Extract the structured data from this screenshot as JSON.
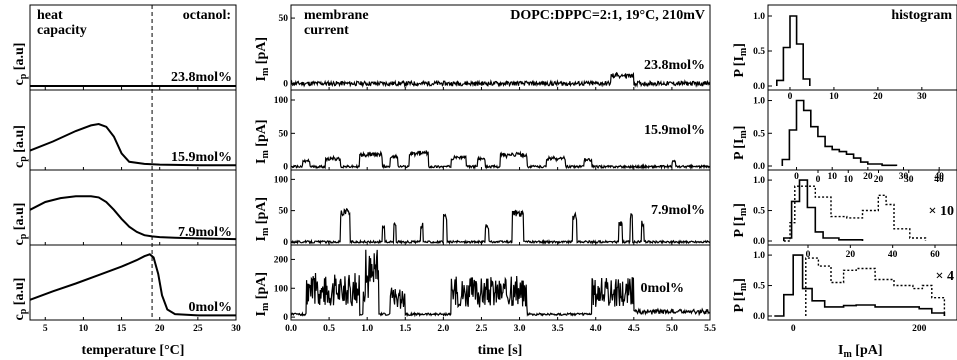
{
  "figure": {
    "left": {
      "header_left": [
        "heat",
        "capacity"
      ],
      "header_right": "octanol:",
      "y_label_main": "c",
      "y_label_sub": "p",
      "y_label_unit": " [a.u]",
      "x_label": "temperature [°C]",
      "x_ticks": [
        "5",
        "10",
        "15",
        "20",
        "25",
        "30"
      ],
      "conc_labels": [
        "23.8mol%",
        "15.9mol%",
        "7.9mol%",
        "0mol%"
      ]
    },
    "middle": {
      "header_left": [
        "membrane",
        "current"
      ],
      "header_right": "DOPC:DPPC=2:1, 19°C, 210mV",
      "y_label_main": "I",
      "y_label_sub": "m",
      "y_label_unit": " [pA]",
      "x_label": "time [s]",
      "x_ticks": [
        "0.0",
        "0.5",
        "1.0",
        "1.5",
        "2.0",
        "2.5",
        "3.0",
        "3.5",
        "4.0",
        "4.5",
        "5.0",
        "5.5"
      ],
      "conc_labels": [
        "23.8mol%",
        "15.9mol%",
        "7.9mol%",
        "0mol%"
      ],
      "y_ticks": [
        [
          "0",
          "50"
        ],
        [
          "0",
          "50",
          "100"
        ],
        [
          "0",
          "50",
          "100"
        ],
        [
          "0",
          "100",
          "200"
        ]
      ]
    },
    "right": {
      "header": "histogram",
      "y_label_main": "P [I",
      "y_label_sub": "m",
      "y_label_end": "]",
      "x_label_main": "I",
      "x_label_sub": "m",
      "x_label_unit": " [pA]",
      "y_ticks": [
        "0.0",
        "0.5",
        "1.0"
      ],
      "x_ticks": [
        "0",
        "200"
      ],
      "top_ticks": [
        [
          "0",
          "10",
          "20",
          "30"
        ],
        [
          "0",
          "10",
          "20",
          "30",
          "40"
        ],
        [
          "0",
          "20",
          "40",
          "60"
        ]
      ],
      "scale_labels": [
        "× 10",
        "× 4"
      ]
    }
  },
  "chart_data": [
    {
      "type": "line",
      "title": "heat capacity",
      "xlabel": "temperature [°C]",
      "ylabel": "cp [a.u]",
      "xlim": [
        3,
        30
      ],
      "marker_line_x": 19,
      "series": [
        {
          "name": "23.8mol%",
          "x": [
            3,
            30
          ],
          "y": [
            0,
            0
          ]
        },
        {
          "name": "15.9mol%",
          "x": [
            3,
            6,
            9,
            11,
            12,
            13,
            14,
            15,
            16,
            18,
            20,
            25,
            30
          ],
          "y": [
            0.22,
            0.35,
            0.5,
            0.58,
            0.6,
            0.56,
            0.42,
            0.18,
            0.06,
            0.03,
            0.02,
            0.01,
            0.01
          ]
        },
        {
          "name": "7.9mol%",
          "x": [
            3,
            5,
            7,
            9,
            11,
            12,
            13,
            14,
            15,
            16,
            17,
            18,
            19,
            20,
            22,
            25,
            30
          ],
          "y": [
            0.48,
            0.6,
            0.66,
            0.69,
            0.69,
            0.67,
            0.6,
            0.48,
            0.34,
            0.22,
            0.14,
            0.09,
            0.07,
            0.06,
            0.05,
            0.04,
            0.03
          ]
        },
        {
          "name": "0mol%",
          "x": [
            3,
            6,
            9,
            12,
            15,
            17,
            18,
            18.7,
            19.2,
            19.8,
            20.3,
            21,
            22,
            25,
            30
          ],
          "y": [
            0.25,
            0.38,
            0.5,
            0.63,
            0.76,
            0.86,
            0.92,
            0.95,
            0.9,
            0.65,
            0.32,
            0.1,
            0.03,
            0.01,
            0.01
          ]
        }
      ]
    },
    {
      "type": "line",
      "title": "membrane current",
      "subtitle": "DOPC:DPPC=2:1, 19°C, 210mV",
      "xlabel": "time [s]",
      "ylabel": "Im [pA]",
      "xlim": [
        0,
        5.5
      ],
      "panels": [
        {
          "name": "23.8mol%",
          "ylim": [
            -5,
            60
          ],
          "baseline": 0,
          "events": [
            {
              "t": 4.2,
              "dur": 0.3,
              "amp": 6
            }
          ]
        },
        {
          "name": "15.9mol%",
          "ylim": [
            -5,
            115
          ],
          "baseline": 0,
          "events": [
            {
              "t": 0.15,
              "dur": 0.1,
              "amp": 8
            },
            {
              "t": 0.45,
              "dur": 0.2,
              "amp": 12
            },
            {
              "t": 0.9,
              "dur": 0.3,
              "amp": 18
            },
            {
              "t": 1.3,
              "dur": 0.1,
              "amp": 15
            },
            {
              "t": 1.55,
              "dur": 0.25,
              "amp": 20
            },
            {
              "t": 2.1,
              "dur": 0.2,
              "amp": 14
            },
            {
              "t": 2.45,
              "dur": 0.1,
              "amp": 12
            },
            {
              "t": 2.75,
              "dur": 0.35,
              "amp": 18
            },
            {
              "t": 3.35,
              "dur": 0.25,
              "amp": 12
            },
            {
              "t": 3.85,
              "dur": 0.1,
              "amp": 10
            },
            {
              "t": 5.0,
              "dur": 0.05,
              "amp": 8
            }
          ]
        },
        {
          "name": "7.9mol%",
          "ylim": [
            -5,
            115
          ],
          "baseline": 0,
          "events": [
            {
              "t": 0.65,
              "dur": 0.12,
              "amp": 46
            },
            {
              "t": 1.2,
              "dur": 0.03,
              "amp": 25
            },
            {
              "t": 1.35,
              "dur": 0.03,
              "amp": 30
            },
            {
              "t": 1.7,
              "dur": 0.03,
              "amp": 25
            },
            {
              "t": 2.0,
              "dur": 0.05,
              "amp": 38
            },
            {
              "t": 2.55,
              "dur": 0.05,
              "amp": 25
            },
            {
              "t": 2.9,
              "dur": 0.15,
              "amp": 45
            },
            {
              "t": 3.7,
              "dur": 0.05,
              "amp": 40
            },
            {
              "t": 4.3,
              "dur": 0.05,
              "amp": 30
            },
            {
              "t": 4.45,
              "dur": 0.03,
              "amp": 40
            },
            {
              "t": 4.6,
              "dur": 0.03,
              "amp": 30
            }
          ]
        },
        {
          "name": "0mol%",
          "ylim": [
            -10,
            250
          ],
          "baseline": 10,
          "bursts": [
            {
              "t0": 0.2,
              "t1": 0.9,
              "amp": 140
            },
            {
              "t0": 0.95,
              "t1": 1.15,
              "amp": 230
            },
            {
              "t0": 1.3,
              "t1": 1.5,
              "amp": 90
            },
            {
              "t0": 2.1,
              "t1": 3.1,
              "amp": 130
            },
            {
              "t0": 3.95,
              "t1": 4.5,
              "amp": 130
            },
            {
              "t0": 4.5,
              "t1": 5.5,
              "amp": 15
            }
          ]
        }
      ]
    },
    {
      "type": "bar",
      "title": "histogram",
      "xlabel": "Im [pA]",
      "ylabel": "P [Im]",
      "ylim": [
        0,
        1.1
      ],
      "panels": [
        {
          "name": "23.8mol%",
          "xlim": [
            -5,
            38
          ],
          "x": [
            -3,
            -1.5,
            0,
            1.5,
            3,
            4.5
          ],
          "y": [
            0.08,
            0.55,
            1.0,
            0.6,
            0.1,
            0.0
          ]
        },
        {
          "name": "15.9mol%",
          "xlim": [
            -8,
            45
          ],
          "x": [
            -4,
            -2,
            0,
            2,
            4,
            6,
            8,
            10,
            12,
            14,
            16,
            18,
            20,
            24,
            28
          ],
          "y": [
            0.1,
            0.55,
            1.0,
            0.85,
            0.6,
            0.45,
            0.3,
            0.25,
            0.22,
            0.18,
            0.12,
            0.06,
            0.03,
            0.01,
            0.0
          ]
        },
        {
          "name": "7.9mol%",
          "xlim": [
            -20,
            100
          ],
          "scale": "× 10",
          "solid": {
            "x": [
              -10,
              -5,
              0,
              5,
              10,
              15,
              25,
              40
            ],
            "y": [
              0.05,
              0.65,
              1.0,
              0.55,
              0.15,
              0.05,
              0.02,
              0.0
            ]
          },
          "dotted": {
            "x": [
              -10,
              -6,
              -3,
              5,
              10,
              20,
              30,
              40,
              50,
              55,
              60,
              70,
              80
            ],
            "y": [
              0.0,
              0.3,
              0.9,
              0.9,
              0.72,
              0.4,
              0.38,
              0.5,
              0.75,
              0.6,
              0.2,
              0.05,
              0.0
            ]
          }
        },
        {
          "name": "0mol%",
          "xlim": [
            -40,
            260
          ],
          "scale": "× 4",
          "solid": {
            "x": [
              -30,
              -15,
              0,
              15,
              30,
              50,
              80,
              100,
              130,
              170,
              200,
              220,
              240
            ],
            "y": [
              0.0,
              0.35,
              1.0,
              0.45,
              0.25,
              0.15,
              0.17,
              0.18,
              0.15,
              0.15,
              0.12,
              0.05,
              0.0
            ]
          },
          "dotted": {
            "x": [
              20,
              40,
              60,
              80,
              100,
              130,
              160,
              190,
              205,
              220,
              240
            ],
            "y": [
              0.95,
              0.82,
              0.55,
              0.75,
              0.78,
              0.6,
              0.5,
              0.45,
              0.5,
              0.3,
              0.0
            ]
          }
        }
      ]
    }
  ]
}
